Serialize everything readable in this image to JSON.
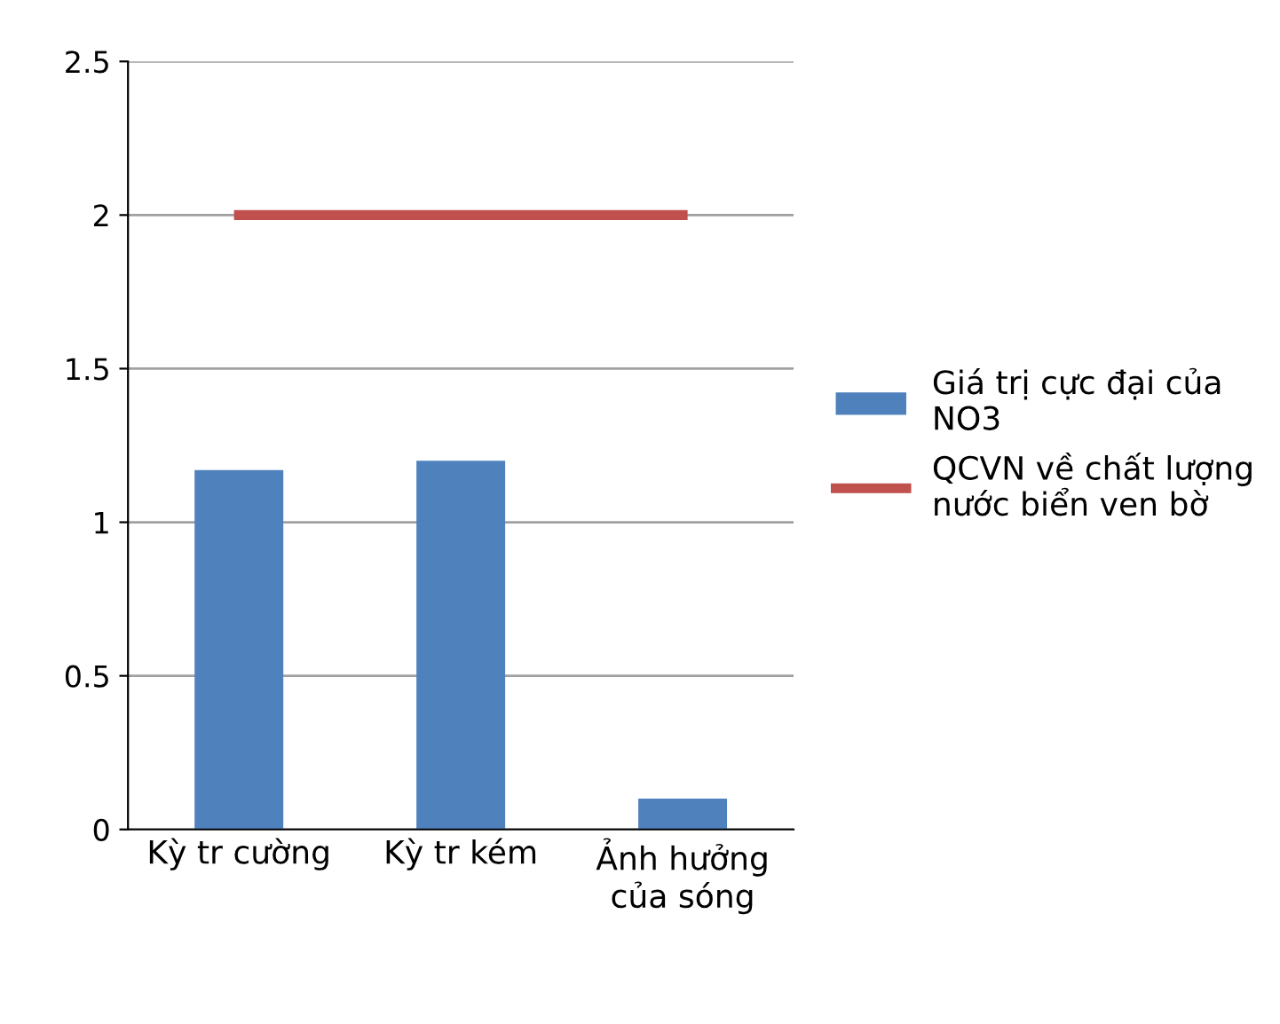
{
  "chart_data": {
    "type": "bar",
    "categories": [
      "Kỳ tr cường",
      "Kỳ tr kém",
      "Ảnh hưởng\ncủa sóng"
    ],
    "series": [
      {
        "name": "Giá trị cực đại của\nNO3",
        "color": "#4f81bd",
        "values": [
          1.17,
          1.2,
          0.1
        ]
      },
      {
        "name": "QCVN về chất lượng\nnước biển ven bờ",
        "color": "#c0504d",
        "type": "line",
        "values": [
          2,
          2,
          2
        ]
      }
    ],
    "ylim": [
      0,
      2.5
    ],
    "yticks": [
      0,
      0.5,
      1,
      1.5,
      2,
      2.5
    ],
    "grid": "y",
    "legend": "right"
  }
}
